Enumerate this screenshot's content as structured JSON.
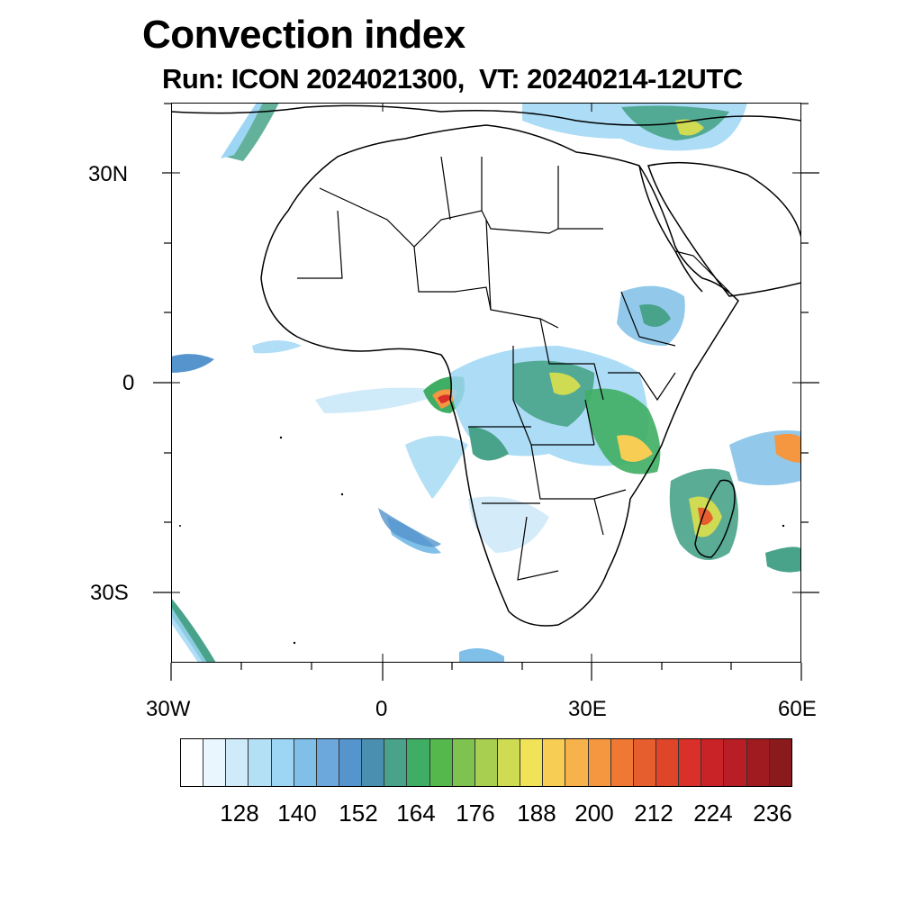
{
  "title": "Convection index",
  "subtitle": "Run: ICON 2024021300,  VT: 20240214-12UTC",
  "map": {
    "lon_labels": [
      "30W",
      "0",
      "30E",
      "60E"
    ],
    "lat_labels": [
      "30N",
      "0",
      "30S"
    ],
    "lon_range": [
      -30,
      60
    ],
    "lat_range": [
      -40,
      40
    ]
  },
  "colorbar": {
    "labels": [
      "128",
      "140",
      "152",
      "164",
      "176",
      "188",
      "200",
      "212",
      "224",
      "236"
    ],
    "colors": [
      "#ffffff",
      "#eaf6fd",
      "#cfeaf8",
      "#b4e0f6",
      "#9dd6f5",
      "#7fbfe8",
      "#6ca8dc",
      "#5594cc",
      "#4b8fb0",
      "#48a38a",
      "#3fae64",
      "#55b84d",
      "#7ec24f",
      "#a9cf50",
      "#cfdb53",
      "#f0e358",
      "#f8cd54",
      "#f8b24c",
      "#f59640",
      "#ef7834",
      "#e65e2d",
      "#df4529",
      "#d93029",
      "#c92328",
      "#b81e25",
      "#a01b20",
      "#8a1a1c"
    ]
  }
}
